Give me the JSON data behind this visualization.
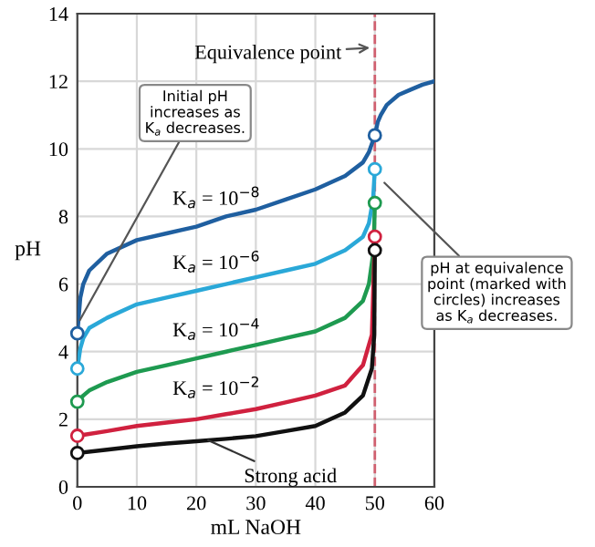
{
  "chart_data": {
    "type": "line",
    "xlabel": "mL NaOH",
    "ylabel": "pH",
    "xlim": [
      0,
      60
    ],
    "ylim": [
      0,
      14
    ],
    "xticks": [
      0,
      10,
      20,
      30,
      40,
      50,
      60
    ],
    "yticks": [
      0,
      2,
      4,
      6,
      8,
      10,
      12,
      14
    ],
    "grid": true,
    "line_style": "solid",
    "series": [
      {
        "name": "K$_{a}$ = 10$^{−8}$",
        "color": "#1f5fa0",
        "x": [
          0,
          0.5,
          1,
          2,
          5,
          10,
          15,
          20,
          25,
          30,
          35,
          40,
          45,
          48,
          49,
          50,
          50.5,
          51,
          52,
          54,
          56,
          58,
          60
        ],
        "values": [
          4.54,
          5.6,
          6.0,
          6.4,
          6.9,
          7.3,
          7.5,
          7.7,
          8.0,
          8.2,
          8.5,
          8.8,
          9.2,
          9.6,
          9.9,
          10.4,
          10.8,
          11.0,
          11.3,
          11.6,
          11.75,
          11.9,
          12.0
        ]
      },
      {
        "name": "K$_{a}$ = 10$^{−6}$",
        "color": "#2aa8d8",
        "x": [
          0,
          0.5,
          1,
          2,
          5,
          10,
          15,
          20,
          25,
          30,
          35,
          40,
          45,
          48,
          49,
          49.7,
          50
        ],
        "values": [
          3.5,
          4.1,
          4.4,
          4.7,
          5.0,
          5.4,
          5.6,
          5.8,
          6.0,
          6.2,
          6.4,
          6.6,
          7.0,
          7.4,
          7.8,
          8.5,
          9.4
        ]
      },
      {
        "name": "K$_{a}$ = 10$^{−4}$",
        "color": "#1e9a50",
        "x": [
          0,
          1,
          2,
          5,
          10,
          15,
          20,
          25,
          30,
          35,
          40,
          45,
          48,
          49,
          49.8,
          50
        ],
        "values": [
          2.52,
          2.7,
          2.85,
          3.1,
          3.4,
          3.6,
          3.8,
          4.0,
          4.2,
          4.4,
          4.6,
          5.0,
          5.5,
          6.0,
          7.0,
          8.4
        ]
      },
      {
        "name": "K$_{a}$ = 10$^{−2}$",
        "color": "#d0213f",
        "x": [
          0,
          5,
          10,
          15,
          20,
          25,
          30,
          35,
          40,
          45,
          48,
          49.5,
          50
        ],
        "values": [
          1.51,
          1.65,
          1.8,
          1.9,
          2.0,
          2.15,
          2.3,
          2.5,
          2.7,
          3.0,
          3.6,
          4.5,
          7.4
        ]
      },
      {
        "name": "Strong acid",
        "color": "#111111",
        "x": [
          0,
          5,
          10,
          15,
          20,
          25,
          30,
          35,
          40,
          45,
          48,
          49.5,
          49.9,
          50
        ],
        "values": [
          1.0,
          1.1,
          1.2,
          1.28,
          1.35,
          1.42,
          1.5,
          1.65,
          1.8,
          2.2,
          2.7,
          3.5,
          4.5,
          7.0
        ]
      },
      {
        "type": "scatter",
        "marker": "circle",
        "x": [
          0,
          0,
          0,
          0,
          0,
          50,
          50,
          50,
          50,
          50
        ],
        "values": [
          4.54,
          3.5,
          2.52,
          1.51,
          1.0,
          10.4,
          9.4,
          8.4,
          7.4,
          7.0
        ],
        "colors": [
          "#1f5fa0",
          "#2aa8d8",
          "#1e9a50",
          "#d0213f",
          "#111111",
          "#1f5fa0",
          "#2aa8d8",
          "#1e9a50",
          "#d0213f",
          "#111111"
        ]
      }
    ],
    "ref_lines": [
      {
        "axis": "x",
        "value": 50,
        "color": "#d06070",
        "line_style": "dashed"
      }
    ],
    "annotations": [
      {
        "text": "Equivalence point",
        "x": 50,
        "y": 13
      },
      {
        "text": "Initial pH\nincreases as\nK$_{a}$ decreases.",
        "x": 0,
        "y": 4.8
      },
      {
        "text": "pH at equivalence\npoint (marked with\ncircles) increases\nas K$_{a}$ decreases.",
        "x": 51,
        "y": 9.1
      }
    ]
  }
}
